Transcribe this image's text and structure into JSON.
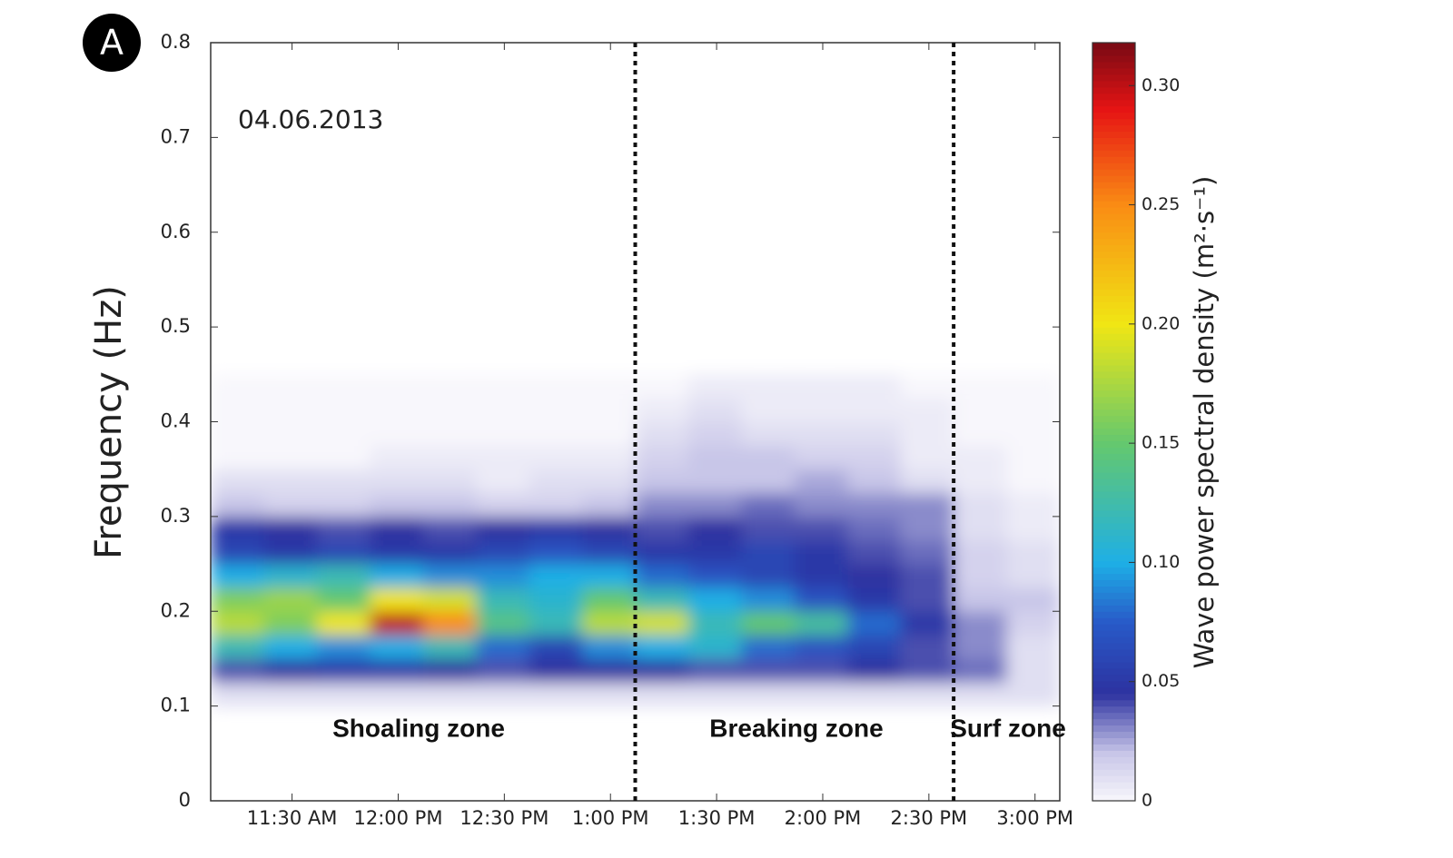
{
  "chart_data": {
    "type": "heatmap",
    "panel_label": "A",
    "date_label": "04.06.2013",
    "ylabel": "Frequency (Hz)",
    "colorbar_label": "Wave power spectral density (m²·s⁻¹)",
    "xlim": [
      667,
      907
    ],
    "xticks": [
      {
        "value": 690,
        "label": "11:30 AM"
      },
      {
        "value": 720,
        "label": "12:00 PM"
      },
      {
        "value": 750,
        "label": "12:30 PM"
      },
      {
        "value": 780,
        "label": "1:00 PM"
      },
      {
        "value": 810,
        "label": "1:30 PM"
      },
      {
        "value": 840,
        "label": "2:00 PM"
      },
      {
        "value": 870,
        "label": "2:30 PM"
      },
      {
        "value": 900,
        "label": "3:00 PM"
      }
    ],
    "ylim": [
      0,
      0.8
    ],
    "yticks": [
      0,
      0.1,
      0.2,
      0.3,
      0.4,
      0.5,
      0.6,
      0.7,
      0.8
    ],
    "clim": [
      0,
      0.318
    ],
    "cticks": [
      0,
      {
        "value": 0.05,
        "label": "0.05"
      },
      {
        "value": 0.1,
        "label": "0.10"
      },
      0.15,
      {
        "value": 0.2,
        "label": "0.20"
      },
      0.25,
      {
        "value": 0.3,
        "label": "0.30"
      }
    ],
    "dividers": [
      787,
      877
    ],
    "zones": [
      "Shoaling zone",
      "Breaking zone",
      "Surf zone"
    ],
    "x_bins": [
      667,
      682,
      697,
      712,
      727,
      742,
      757,
      772,
      787,
      802,
      817,
      832,
      847,
      862,
      877,
      892,
      907
    ],
    "y_bins": [
      0.1,
      0.125,
      0.15,
      0.175,
      0.2,
      0.225,
      0.25,
      0.275,
      0.3,
      0.325,
      0.35,
      0.375,
      0.4,
      0.425,
      0.45
    ],
    "z": [
      [
        0.01,
        0.01,
        0.01,
        0.01,
        0.01,
        0.01,
        0.01,
        0.01,
        0.01,
        0.01,
        0.01,
        0.01,
        0.01,
        0.01,
        0.01,
        0.01
      ],
      [
        0.04,
        0.045,
        0.05,
        0.05,
        0.045,
        0.04,
        0.045,
        0.045,
        0.045,
        0.04,
        0.04,
        0.04,
        0.045,
        0.04,
        0.035,
        0.01
      ],
      [
        0.12,
        0.1,
        0.09,
        0.1,
        0.12,
        0.08,
        0.06,
        0.09,
        0.1,
        0.11,
        0.08,
        0.07,
        0.06,
        0.04,
        0.03,
        0.01
      ],
      [
        0.18,
        0.16,
        0.2,
        0.3,
        0.25,
        0.14,
        0.12,
        0.18,
        0.19,
        0.12,
        0.15,
        0.13,
        0.08,
        0.05,
        0.03,
        0.015
      ],
      [
        0.16,
        0.17,
        0.15,
        0.2,
        0.19,
        0.12,
        0.11,
        0.15,
        0.12,
        0.1,
        0.09,
        0.07,
        0.05,
        0.04,
        0.02,
        0.02
      ],
      [
        0.1,
        0.11,
        0.12,
        0.1,
        0.09,
        0.09,
        0.1,
        0.1,
        0.08,
        0.07,
        0.06,
        0.05,
        0.045,
        0.04,
        0.015,
        0.01
      ],
      [
        0.06,
        0.05,
        0.06,
        0.05,
        0.05,
        0.06,
        0.07,
        0.06,
        0.05,
        0.05,
        0.06,
        0.05,
        0.04,
        0.035,
        0.015,
        0.01
      ],
      [
        0.05,
        0.045,
        0.04,
        0.045,
        0.04,
        0.045,
        0.05,
        0.045,
        0.04,
        0.045,
        0.04,
        0.04,
        0.035,
        0.03,
        0.01,
        0.005
      ],
      [
        0.02,
        0.015,
        0.015,
        0.02,
        0.02,
        0.015,
        0.015,
        0.02,
        0.03,
        0.03,
        0.035,
        0.03,
        0.03,
        0.03,
        0.01,
        0.005
      ],
      [
        0.01,
        0.01,
        0.01,
        0.01,
        0.01,
        0.005,
        0.01,
        0.01,
        0.02,
        0.02,
        0.02,
        0.025,
        0.02,
        0.01,
        0.005,
        0
      ],
      [
        0,
        0,
        0,
        0.005,
        0.005,
        0.005,
        0.005,
        0.005,
        0.015,
        0.02,
        0.02,
        0.015,
        0.015,
        0.005,
        0.005,
        0
      ],
      [
        0,
        0,
        0,
        0,
        0,
        0,
        0,
        0,
        0.01,
        0.015,
        0.01,
        0.01,
        0.01,
        0.005,
        0,
        0
      ],
      [
        0,
        0,
        0,
        0,
        0,
        0,
        0,
        0,
        0.005,
        0.01,
        0.005,
        0.005,
        0.005,
        0.005,
        0,
        0
      ],
      [
        0,
        0,
        0,
        0,
        0,
        0,
        0,
        0,
        0,
        0.005,
        0.005,
        0.005,
        0.005,
        0,
        0,
        0
      ]
    ]
  }
}
